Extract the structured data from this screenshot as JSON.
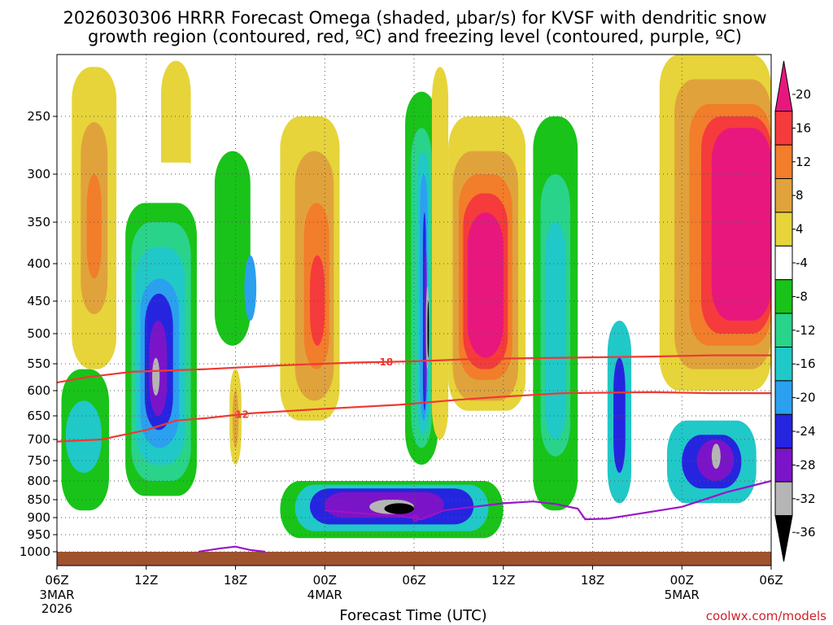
{
  "title": {
    "line1": "2026030306 HRRR Forecast Omega (shaded, µbar/s) for KVSF with dendritic snow",
    "line2": "growth region (contoured, red, ºC) and freezing level (contoured, purple, ºC)"
  },
  "credit": "coolwx.com/models",
  "chart_data": {
    "type": "heatmap",
    "title": "2026030306 HRRR Forecast Omega (shaded, µbar/s) for KVSF with dendritic snow growth region (contoured, red, ºC) and freezing level (contoured, purple, ºC)",
    "xlabel": "Forecast Time (UTC)",
    "ylabel": "",
    "x_range_hours": [
      0,
      48
    ],
    "x_ticks": [
      {
        "hour": 0,
        "label": "06Z",
        "sub": [
          "3MAR",
          "2026"
        ]
      },
      {
        "hour": 6,
        "label": "12Z",
        "sub": []
      },
      {
        "hour": 12,
        "label": "18Z",
        "sub": []
      },
      {
        "hour": 18,
        "label": "00Z",
        "sub": [
          "4MAR"
        ]
      },
      {
        "hour": 24,
        "label": "06Z",
        "sub": []
      },
      {
        "hour": 30,
        "label": "12Z",
        "sub": []
      },
      {
        "hour": 36,
        "label": "18Z",
        "sub": []
      },
      {
        "hour": 42,
        "label": "00Z",
        "sub": [
          "5MAR"
        ]
      },
      {
        "hour": 48,
        "label": "06Z",
        "sub": []
      }
    ],
    "y_range_hPa": [
      1000,
      200
    ],
    "y_ticks": [
      250,
      300,
      350,
      400,
      450,
      500,
      550,
      600,
      650,
      700,
      750,
      800,
      850,
      900,
      950,
      1000
    ],
    "grid": true,
    "colorbar": {
      "labels": [
        "20",
        "16",
        "12",
        "8",
        "4",
        "-4",
        "-8",
        "-12",
        "-16",
        "-20",
        "-24",
        "-28",
        "-32",
        "-36"
      ],
      "colors": [
        "#e8177e",
        "#f53b3b",
        "#f27d2a",
        "#e0a33c",
        "#e6d43a",
        "#ffffff",
        "#19c319",
        "#29d38a",
        "#21c8c8",
        "#2ba0ef",
        "#2525e0",
        "#7b14c8",
        "#b5b5b5",
        "#000000"
      ]
    },
    "omega_cells": [
      {
        "h0": 1.0,
        "h1": 4.0,
        "p0": 560,
        "p1": 210,
        "v": 4
      },
      {
        "h0": 1.6,
        "h1": 3.4,
        "p0": 470,
        "p1": 255,
        "v": 8
      },
      {
        "h0": 2.0,
        "h1": 3.0,
        "p0": 420,
        "p1": 300,
        "v": 12
      },
      {
        "h0": 7.0,
        "h1": 9.0,
        "p0": 330,
        "p1": 205,
        "v": 4
      },
      {
        "h0": 4.0,
        "h1": 10.0,
        "p0": 860,
        "p1": 290,
        "v": -4
      },
      {
        "h0": 4.6,
        "h1": 9.4,
        "p0": 840,
        "p1": 330,
        "v": -8
      },
      {
        "h0": 5.0,
        "h1": 9.0,
        "p0": 800,
        "p1": 350,
        "v": -12
      },
      {
        "h0": 5.3,
        "h1": 8.6,
        "p0": 760,
        "p1": 380,
        "v": -16
      },
      {
        "h0": 5.6,
        "h1": 8.2,
        "p0": 720,
        "p1": 420,
        "v": -20
      },
      {
        "h0": 5.9,
        "h1": 7.8,
        "p0": 680,
        "p1": 440,
        "v": -24
      },
      {
        "h0": 6.2,
        "h1": 7.4,
        "p0": 650,
        "p1": 480,
        "v": -28
      },
      {
        "h0": 6.4,
        "h1": 6.9,
        "p0": 610,
        "p1": 540,
        "v": -32
      },
      {
        "h0": 0.3,
        "h1": 3.5,
        "p0": 880,
        "p1": 560,
        "v": -8
      },
      {
        "h0": 0.6,
        "h1": 3.0,
        "p0": 780,
        "p1": 620,
        "v": -16
      },
      {
        "h0": 10.0,
        "h1": 14.0,
        "p0": 580,
        "p1": 230,
        "v": -4
      },
      {
        "h0": 10.6,
        "h1": 13.0,
        "p0": 520,
        "p1": 280,
        "v": -8
      },
      {
        "h0": 12.6,
        "h1": 13.4,
        "p0": 480,
        "p1": 390,
        "v": -20
      },
      {
        "h0": 11.6,
        "h1": 12.4,
        "p0": 760,
        "p1": 560,
        "v": 4
      },
      {
        "h0": 11.8,
        "h1": 12.2,
        "p0": 720,
        "p1": 600,
        "v": 8
      },
      {
        "h0": 15.0,
        "h1": 19.0,
        "p0": 660,
        "p1": 250,
        "v": 4
      },
      {
        "h0": 16.0,
        "h1": 18.6,
        "p0": 620,
        "p1": 280,
        "v": 8
      },
      {
        "h0": 16.6,
        "h1": 18.3,
        "p0": 560,
        "p1": 330,
        "v": 12
      },
      {
        "h0": 17.0,
        "h1": 18.0,
        "p0": 520,
        "p1": 390,
        "v": 16
      },
      {
        "h0": 19.0,
        "h1": 25.0,
        "p0": 210,
        "p1": 200,
        "v": -4
      },
      {
        "h0": 20.0,
        "h1": 23.0,
        "p0": 530,
        "p1": 440,
        "v": -4
      },
      {
        "h0": 23.0,
        "h1": 26.0,
        "p0": 800,
        "p1": 210,
        "v": -4
      },
      {
        "h0": 23.4,
        "h1": 25.6,
        "p0": 760,
        "p1": 230,
        "v": -8
      },
      {
        "h0": 23.8,
        "h1": 25.2,
        "p0": 720,
        "p1": 260,
        "v": -12
      },
      {
        "h0": 24.2,
        "h1": 25.0,
        "p0": 690,
        "p1": 280,
        "v": -16
      },
      {
        "h0": 24.4,
        "h1": 24.9,
        "p0": 660,
        "p1": 300,
        "v": -20
      },
      {
        "h0": 24.6,
        "h1": 24.8,
        "p0": 640,
        "p1": 340,
        "v": -24
      },
      {
        "h0": 24.7,
        "h1": 24.85,
        "p0": 620,
        "p1": 380,
        "v": -28
      },
      {
        "h0": 24.8,
        "h1": 25.0,
        "p0": 560,
        "p1": 430,
        "v": -32
      },
      {
        "h0": 24.9,
        "h1": 25.0,
        "p0": 540,
        "p1": 450,
        "v": -36
      },
      {
        "h0": 25.2,
        "h1": 26.3,
        "p0": 700,
        "p1": 210,
        "v": 4
      },
      {
        "h0": 26.3,
        "h1": 31.5,
        "p0": 640,
        "p1": 250,
        "v": 4
      },
      {
        "h0": 26.6,
        "h1": 31.0,
        "p0": 620,
        "p1": 280,
        "v": 8
      },
      {
        "h0": 27.0,
        "h1": 30.6,
        "p0": 580,
        "p1": 300,
        "v": 12
      },
      {
        "h0": 27.3,
        "h1": 30.3,
        "p0": 560,
        "p1": 320,
        "v": 16
      },
      {
        "h0": 27.6,
        "h1": 30.0,
        "p0": 540,
        "p1": 340,
        "v": 20
      },
      {
        "h0": 31.5,
        "h1": 35.5,
        "p0": 900,
        "p1": 200,
        "v": -4
      },
      {
        "h0": 32.0,
        "h1": 35.0,
        "p0": 880,
        "p1": 250,
        "v": -8
      },
      {
        "h0": 32.5,
        "h1": 34.5,
        "p0": 740,
        "p1": 300,
        "v": -12
      },
      {
        "h0": 32.8,
        "h1": 34.2,
        "p0": 700,
        "p1": 350,
        "v": -16
      },
      {
        "h0": 15.0,
        "h1": 30.0,
        "p0": 960,
        "p1": 800,
        "v": -8
      },
      {
        "h0": 16.0,
        "h1": 29.0,
        "p0": 940,
        "p1": 810,
        "v": -16
      },
      {
        "h0": 17.0,
        "h1": 28.0,
        "p0": 920,
        "p1": 820,
        "v": -24
      },
      {
        "h0": 18.0,
        "h1": 26.0,
        "p0": 900,
        "p1": 830,
        "v": -28
      },
      {
        "h0": 21.0,
        "h1": 24.0,
        "p0": 890,
        "p1": 850,
        "v": -32
      },
      {
        "h0": 22.0,
        "h1": 24.0,
        "p0": 890,
        "p1": 860,
        "v": -36
      },
      {
        "h0": 36.0,
        "h1": 40.0,
        "p0": 900,
        "p1": 420,
        "v": -4
      },
      {
        "h0": 37.0,
        "h1": 38.6,
        "p0": 860,
        "p1": 480,
        "v": -16
      },
      {
        "h0": 37.4,
        "h1": 38.2,
        "p0": 780,
        "p1": 540,
        "v": -24
      },
      {
        "h0": 40.0,
        "h1": 48.0,
        "p0": 900,
        "p1": 600,
        "v": -4
      },
      {
        "h0": 41.0,
        "h1": 47.0,
        "p0": 860,
        "p1": 660,
        "v": -16
      },
      {
        "h0": 42.0,
        "h1": 46.0,
        "p0": 820,
        "p1": 690,
        "v": -24
      },
      {
        "h0": 43.0,
        "h1": 45.5,
        "p0": 800,
        "p1": 700,
        "v": -28
      },
      {
        "h0": 44.0,
        "h1": 44.6,
        "p0": 770,
        "p1": 710,
        "v": -32
      },
      {
        "h0": 40.5,
        "h1": 48.0,
        "p0": 600,
        "p1": 200,
        "v": 4
      },
      {
        "h0": 41.5,
        "h1": 48.0,
        "p0": 560,
        "p1": 220,
        "v": 8
      },
      {
        "h0": 42.5,
        "h1": 48.0,
        "p0": 520,
        "p1": 240,
        "v": 12
      },
      {
        "h0": 43.3,
        "h1": 48.0,
        "p0": 500,
        "p1": 250,
        "v": 16
      },
      {
        "h0": 44.0,
        "h1": 48.0,
        "p0": 480,
        "p1": 260,
        "v": 20
      }
    ],
    "dgz_contours": [
      {
        "label": "-18",
        "label_hour": 22,
        "points": [
          [
            0,
            585
          ],
          [
            2,
            575
          ],
          [
            5,
            565
          ],
          [
            10,
            560
          ],
          [
            15,
            553
          ],
          [
            20,
            548
          ],
          [
            24,
            546
          ],
          [
            28,
            542
          ],
          [
            34,
            540
          ],
          [
            40,
            538
          ],
          [
            44,
            536
          ],
          [
            48,
            536
          ]
        ]
      },
      {
        "label": "-12",
        "label_hour": 12.3,
        "points": [
          [
            0,
            705
          ],
          [
            3,
            700
          ],
          [
            6,
            680
          ],
          [
            8,
            660
          ],
          [
            10,
            655
          ],
          [
            13,
            645
          ],
          [
            18,
            636
          ],
          [
            23,
            628
          ],
          [
            27,
            618
          ],
          [
            30,
            612
          ],
          [
            34,
            605
          ],
          [
            40,
            603
          ],
          [
            44,
            605
          ],
          [
            48,
            605
          ]
        ]
      }
    ],
    "freezing_contours": [
      {
        "label": "0",
        "label_hour": 24.1,
        "points": [
          [
            18,
            880
          ],
          [
            21,
            890
          ],
          [
            23,
            895
          ],
          [
            24.5,
            905
          ],
          [
            26,
            880
          ],
          [
            28,
            870
          ],
          [
            30,
            860
          ],
          [
            32,
            855
          ],
          [
            33.5,
            862
          ],
          [
            35,
            875
          ],
          [
            35.5,
            905
          ],
          [
            37,
            903
          ],
          [
            39,
            890
          ],
          [
            42,
            870
          ],
          [
            45,
            830
          ],
          [
            48,
            800
          ]
        ]
      },
      {
        "label": "",
        "label_hour": null,
        "points": [
          [
            9.5,
            1000
          ],
          [
            11,
            990
          ],
          [
            12,
            985
          ],
          [
            13,
            995
          ],
          [
            14,
            1000
          ]
        ]
      }
    ]
  }
}
